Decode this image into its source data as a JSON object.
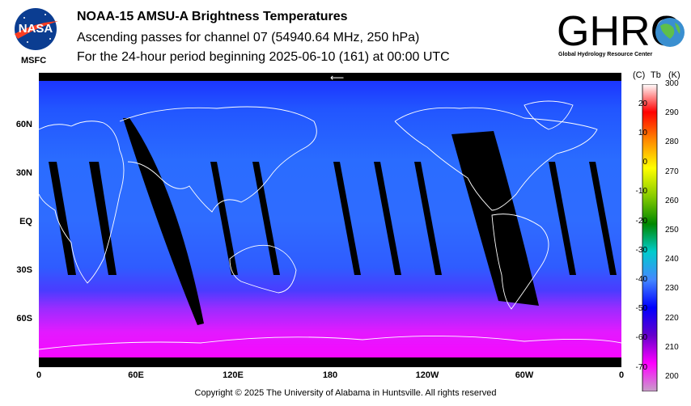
{
  "header": {
    "title": "NOAA-15 AMSU-A Brightness Temperatures",
    "subtitle_1": "Ascending passes for channel 07 (54940.64 MHz, 250 hPa)",
    "subtitle_2": "For the 24-hour period beginning 2025-06-10 (161) at 00:00 UTC"
  },
  "logos": {
    "nasa_text": "NASA",
    "msfc_text": "MSFC",
    "ghrc_text": "GHRC",
    "ghrc_subtitle": "Global Hydrology Resource Center"
  },
  "map": {
    "lat_labels": [
      "60N",
      "30N",
      "EQ",
      "30S",
      "60S"
    ],
    "lon_labels": [
      "0",
      "60E",
      "120E",
      "180",
      "120W",
      "60W",
      "0"
    ],
    "direction_arrow": "⟵"
  },
  "colorbar": {
    "header_c": "(C)",
    "header_tb": "Tb",
    "header_k": "(K)",
    "celsius_ticks": [
      "20",
      "10",
      "0",
      "-10",
      "-20",
      "-30",
      "-40",
      "-50",
      "-60",
      "-70"
    ],
    "kelvin_ticks": [
      "300",
      "290",
      "280",
      "270",
      "260",
      "250",
      "240",
      "230",
      "220",
      "210",
      "200"
    ],
    "kelvin_range": [
      195,
      300
    ],
    "colors": [
      "#c8a0c8",
      "#ff00ff",
      "#6600cc",
      "#0000ff",
      "#4488ff",
      "#00cccc",
      "#008800",
      "#88cc00",
      "#ffff00",
      "#ff8800",
      "#ff0000",
      "#ffffff"
    ]
  },
  "footer": {
    "copyright": "Copyright © 2025 The University of Alabama in Huntsville.  All rights reserved"
  }
}
